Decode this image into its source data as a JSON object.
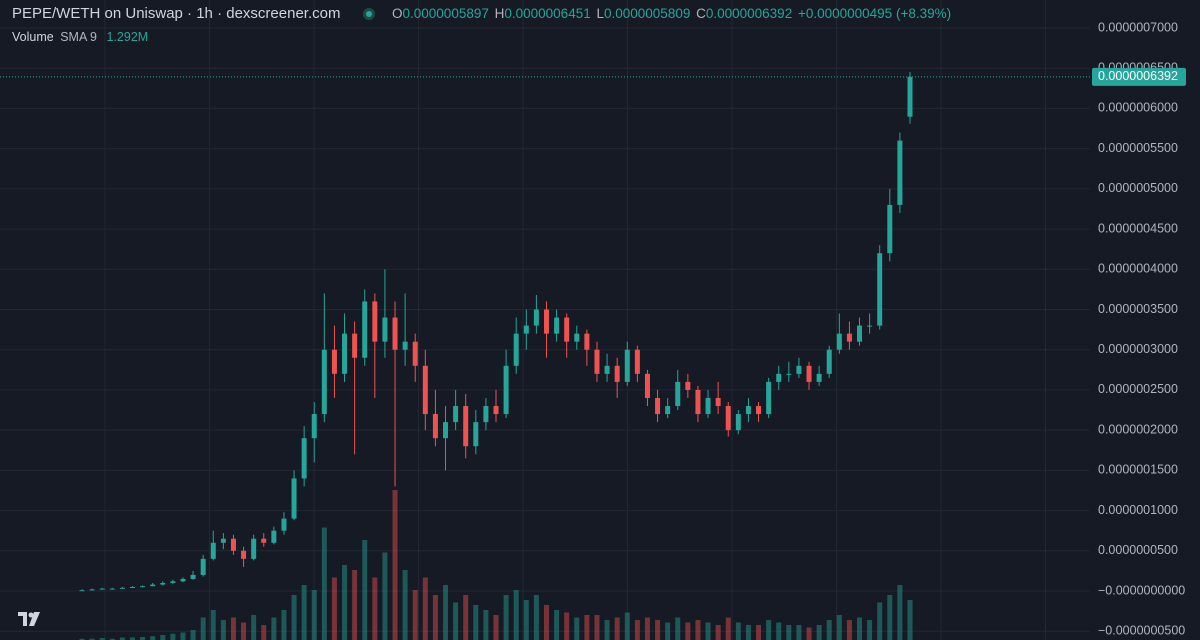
{
  "header": {
    "symbol": "PEPE/WETH on Uniswap · 1h · dexscreener.com",
    "o_label": "O",
    "o": "0.0000005897",
    "h_label": "H",
    "h": "0.0000006451",
    "l_label": "L",
    "l": "0.0000005809",
    "c_label": "C",
    "c": "0.0000006392",
    "change": "+0.0000000495 (+8.39%)",
    "volume_label": "Volume",
    "sma_label": "SMA 9",
    "sma_value": "1.292M"
  },
  "chart_data": {
    "type": "candlestick",
    "up_color": "#26a69a",
    "down_color": "#ef5350",
    "grid": true,
    "ylim": [
      -6.09e-08,
      7.348e-07
    ],
    "yticks": [
      {
        "value": 7e-07,
        "label": "0.0000007000"
      },
      {
        "value": 6.5e-07,
        "label": "0.0000006500"
      },
      {
        "value": 6e-07,
        "label": "0.0000006000"
      },
      {
        "value": 5.5e-07,
        "label": "0.0000005500"
      },
      {
        "value": 5e-07,
        "label": "0.0000005000"
      },
      {
        "value": 4.5e-07,
        "label": "0.0000004500"
      },
      {
        "value": 4e-07,
        "label": "0.0000004000"
      },
      {
        "value": 3.5e-07,
        "label": "0.0000003500"
      },
      {
        "value": 3e-07,
        "label": "0.0000003000"
      },
      {
        "value": 2.5e-07,
        "label": "0.0000002500"
      },
      {
        "value": 2e-07,
        "label": "0.0000002000"
      },
      {
        "value": 1.5e-07,
        "label": "0.0000001500"
      },
      {
        "value": 1e-07,
        "label": "0.0000001000"
      },
      {
        "value": 5e-08,
        "label": "0.0000000500"
      },
      {
        "value": 0,
        "label": "−0.0000000000"
      },
      {
        "value": -5e-08,
        "label": "−0.0000000500"
      }
    ],
    "last_price": {
      "value": 6.392e-07,
      "label": "0.0000006392"
    },
    "candles": [
      [
        1e-09,
        2e-09,
        1e-09,
        1e-09
      ],
      [
        1e-09,
        3e-09,
        1e-09,
        2e-09
      ],
      [
        2e-09,
        4e-09,
        2e-09,
        3e-09
      ],
      [
        3e-09,
        4e-09,
        2e-09,
        3e-09
      ],
      [
        3e-09,
        5e-09,
        3e-09,
        4e-09
      ],
      [
        4e-09,
        6e-09,
        4e-09,
        5e-09
      ],
      [
        5e-09,
        7e-09,
        5e-09,
        6e-09
      ],
      [
        6e-09,
        1e-08,
        6e-09,
        8e-09
      ],
      [
        8e-09,
        1.2e-08,
        7e-09,
        1e-08
      ],
      [
        1e-08,
        1.4e-08,
        9e-09,
        1.2e-08
      ],
      [
        1.2e-08,
        1.7e-08,
        1.1e-08,
        1.5e-08
      ],
      [
        1.5e-08,
        2.5e-08,
        1.4e-08,
        2e-08
      ],
      [
        2e-08,
        4.5e-08,
        1.8e-08,
        4e-08
      ],
      [
        4e-08,
        7.5e-08,
        3.8e-08,
        6e-08
      ],
      [
        6e-08,
        7.2e-08,
        5.2e-08,
        6.5e-08
      ],
      [
        6.5e-08,
        7e-08,
        4.5e-08,
        5e-08
      ],
      [
        5e-08,
        5.5e-08,
        3e-08,
        4e-08
      ],
      [
        4e-08,
        7e-08,
        3.8e-08,
        6.5e-08
      ],
      [
        6.5e-08,
        7.2e-08,
        5.5e-08,
        6e-08
      ],
      [
        6e-08,
        8e-08,
        5.8e-08,
        7.5e-08
      ],
      [
        7.5e-08,
        9.8e-08,
        7e-08,
        9e-08
      ],
      [
        9e-08,
        1.5e-07,
        8.8e-08,
        1.4e-07
      ],
      [
        1.4e-07,
        2.05e-07,
        1.3e-07,
        1.9e-07
      ],
      [
        1.9e-07,
        2.35e-07,
        1.6e-07,
        2.2e-07
      ],
      [
        2.2e-07,
        3.7e-07,
        2.1e-07,
        3e-07
      ],
      [
        3e-07,
        3.3e-07,
        2.4e-07,
        2.7e-07
      ],
      [
        2.7e-07,
        3.45e-07,
        2.6e-07,
        3.2e-07
      ],
      [
        3.2e-07,
        3.35e-07,
        1.7e-07,
        2.9e-07
      ],
      [
        2.9e-07,
        3.75e-07,
        2.8e-07,
        3.6e-07
      ],
      [
        3.6e-07,
        3.7e-07,
        2.4e-07,
        3.1e-07
      ],
      [
        3.1e-07,
        4e-07,
        2.9e-07,
        3.4e-07
      ],
      [
        3.4e-07,
        3.6e-07,
        1.3e-07,
        3e-07
      ],
      [
        3e-07,
        3.7e-07,
        2.8e-07,
        3.1e-07
      ],
      [
        3.1e-07,
        3.2e-07,
        2.6e-07,
        2.8e-07
      ],
      [
        2.8e-07,
        3e-07,
        2e-07,
        2.2e-07
      ],
      [
        2.2e-07,
        2.5e-07,
        1.8e-07,
        1.9e-07
      ],
      [
        1.9e-07,
        2.3e-07,
        1.5e-07,
        2.1e-07
      ],
      [
        2.1e-07,
        2.5e-07,
        2e-07,
        2.3e-07
      ],
      [
        2.3e-07,
        2.45e-07,
        1.65e-07,
        1.8e-07
      ],
      [
        1.8e-07,
        2.25e-07,
        1.7e-07,
        2.1e-07
      ],
      [
        2.1e-07,
        2.4e-07,
        2e-07,
        2.3e-07
      ],
      [
        2.3e-07,
        2.5e-07,
        2.1e-07,
        2.2e-07
      ],
      [
        2.2e-07,
        3e-07,
        2.15e-07,
        2.8e-07
      ],
      [
        2.8e-07,
        3.4e-07,
        2.7e-07,
        3.2e-07
      ],
      [
        3.2e-07,
        3.5e-07,
        3e-07,
        3.3e-07
      ],
      [
        3.3e-07,
        3.68e-07,
        3.2e-07,
        3.5e-07
      ],
      [
        3.5e-07,
        3.6e-07,
        2.9e-07,
        3.2e-07
      ],
      [
        3.2e-07,
        3.5e-07,
        3.1e-07,
        3.4e-07
      ],
      [
        3.4e-07,
        3.45e-07,
        2.9e-07,
        3.1e-07
      ],
      [
        3.1e-07,
        3.3e-07,
        3e-07,
        3.2e-07
      ],
      [
        3.2e-07,
        3.25e-07,
        2.8e-07,
        3e-07
      ],
      [
        3e-07,
        3.1e-07,
        2.6e-07,
        2.7e-07
      ],
      [
        2.7e-07,
        2.95e-07,
        2.6e-07,
        2.8e-07
      ],
      [
        2.8e-07,
        2.9e-07,
        2.4e-07,
        2.6e-07
      ],
      [
        2.6e-07,
        3.1e-07,
        2.55e-07,
        3e-07
      ],
      [
        3e-07,
        3.05e-07,
        2.6e-07,
        2.7e-07
      ],
      [
        2.7e-07,
        2.75e-07,
        2.3e-07,
        2.4e-07
      ],
      [
        2.4e-07,
        2.5e-07,
        2.1e-07,
        2.2e-07
      ],
      [
        2.2e-07,
        2.4e-07,
        2.15e-07,
        2.3e-07
      ],
      [
        2.3e-07,
        2.75e-07,
        2.25e-07,
        2.6e-07
      ],
      [
        2.6e-07,
        2.7e-07,
        2.4e-07,
        2.5e-07
      ],
      [
        2.5e-07,
        2.55e-07,
        2.1e-07,
        2.2e-07
      ],
      [
        2.2e-07,
        2.5e-07,
        2.15e-07,
        2.4e-07
      ],
      [
        2.4e-07,
        2.6e-07,
        2.2e-07,
        2.3e-07
      ],
      [
        2.3e-07,
        2.35e-07,
        1.92e-07,
        2e-07
      ],
      [
        2e-07,
        2.25e-07,
        1.95e-07,
        2.2e-07
      ],
      [
        2.2e-07,
        2.4e-07,
        2.1e-07,
        2.3e-07
      ],
      [
        2.3e-07,
        2.35e-07,
        2.1e-07,
        2.2e-07
      ],
      [
        2.2e-07,
        2.65e-07,
        2.15e-07,
        2.6e-07
      ],
      [
        2.6e-07,
        2.8e-07,
        2.5e-07,
        2.7e-07
      ],
      [
        2.7e-07,
        2.85e-07,
        2.6e-07,
        2.7e-07
      ],
      [
        2.7e-07,
        2.9e-07,
        2.65e-07,
        2.8e-07
      ],
      [
        2.8e-07,
        2.85e-07,
        2.5e-07,
        2.6e-07
      ],
      [
        2.6e-07,
        2.8e-07,
        2.55e-07,
        2.7e-07
      ],
      [
        2.7e-07,
        3.05e-07,
        2.65e-07,
        3e-07
      ],
      [
        3e-07,
        3.45e-07,
        2.95e-07,
        3.2e-07
      ],
      [
        3.2e-07,
        3.35e-07,
        3e-07,
        3.1e-07
      ],
      [
        3.1e-07,
        3.4e-07,
        3.05e-07,
        3.3e-07
      ],
      [
        3.3e-07,
        3.45e-07,
        3.2e-07,
        3.3e-07
      ],
      [
        3.3e-07,
        4.3e-07,
        3.25e-07,
        4.2e-07
      ],
      [
        4.2e-07,
        5e-07,
        4.1e-07,
        4.8e-07
      ],
      [
        4.8e-07,
        5.7e-07,
        4.7e-07,
        5.6e-07
      ],
      [
        5.897e-07,
        6.451e-07,
        5.809e-07,
        6.392e-07
      ]
    ],
    "volume": [
      0.05,
      0.05,
      0.08,
      0.05,
      0.1,
      0.1,
      0.12,
      0.15,
      0.2,
      0.25,
      0.3,
      0.4,
      0.9,
      1.2,
      0.8,
      0.9,
      0.7,
      1.0,
      0.6,
      0.9,
      1.2,
      1.8,
      2.2,
      2.0,
      4.5,
      2.5,
      3.0,
      2.8,
      4.0,
      2.5,
      3.5,
      6.0,
      2.8,
      2.0,
      2.5,
      1.8,
      2.2,
      1.5,
      1.8,
      1.4,
      1.2,
      1.0,
      1.8,
      2.0,
      1.6,
      1.8,
      1.4,
      1.2,
      1.1,
      0.9,
      1.0,
      1.0,
      0.8,
      0.9,
      1.1,
      0.8,
      0.9,
      0.8,
      0.7,
      0.9,
      0.7,
      0.8,
      0.7,
      0.6,
      0.9,
      0.7,
      0.6,
      0.6,
      0.8,
      0.7,
      0.6,
      0.6,
      0.5,
      0.6,
      0.8,
      1.0,
      0.8,
      0.9,
      0.8,
      1.5,
      1.8,
      2.2,
      1.6
    ]
  }
}
